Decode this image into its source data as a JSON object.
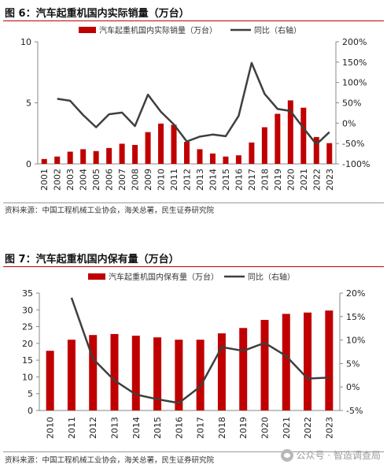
{
  "figures": [
    {
      "title": "图 6：汽车起重机国内实际销量（万台）",
      "source": "资料来源：中国工程机械工业协会，海关总署，民生证券研究院"
    },
    {
      "title": "图 7：汽车起重机国内保有量（万台）",
      "source": "资料来源：中国工程机械工业协会，海关总署，民生证券研究院"
    }
  ],
  "watermark": {
    "label": "公众号 · 智造调查局"
  },
  "colors": {
    "bar": "#c00000",
    "line": "#3f3f3f",
    "rule": "#c00000"
  },
  "chart_data": [
    {
      "type": "bar",
      "secondary_type": "line",
      "categories": [
        "2001",
        "2002",
        "2003",
        "2004",
        "2005",
        "2006",
        "2007",
        "2008",
        "2009",
        "2010",
        "2011",
        "2012",
        "2013",
        "2014",
        "2015",
        "2016",
        "2017",
        "2018",
        "2019",
        "2020",
        "2021",
        "2022",
        "2023"
      ],
      "series": [
        {
          "name": "汽车起重机国内实际销量（万台）",
          "axis": "left",
          "values": [
            0.4,
            0.6,
            1.0,
            1.2,
            1.05,
            1.3,
            1.65,
            1.55,
            2.6,
            3.3,
            3.2,
            1.8,
            1.2,
            0.85,
            0.6,
            0.7,
            1.75,
            3.0,
            4.1,
            5.2,
            4.6,
            2.2,
            1.7
          ]
        },
        {
          "name": "同比（右轴）",
          "axis": "right",
          "values": [
            null,
            0.6,
            0.55,
            0.2,
            -0.1,
            0.22,
            0.26,
            -0.07,
            0.7,
            0.28,
            -0.03,
            -0.45,
            -0.33,
            -0.28,
            -0.32,
            0.18,
            1.48,
            0.72,
            0.35,
            0.3,
            -0.12,
            -0.52,
            -0.22
          ]
        }
      ],
      "ylim": [
        0,
        10
      ],
      "yticks": [
        "0",
        "5",
        "10"
      ],
      "ytick_values": [
        0,
        5,
        10
      ],
      "y2lim": [
        -1,
        2
      ],
      "y2ticks": [
        "-100%",
        "-50%",
        "0%",
        "50%",
        "100%",
        "150%",
        "200%"
      ],
      "y2tick_values": [
        -1,
        -0.5,
        0,
        0.5,
        1,
        1.5,
        2
      ],
      "legend_position": "top",
      "grid": false
    },
    {
      "type": "bar",
      "secondary_type": "line",
      "categories": [
        "2010",
        "2011",
        "2012",
        "2013",
        "2014",
        "2015",
        "2016",
        "2017",
        "2018",
        "2019",
        "2020",
        "2021",
        "2022",
        "2023"
      ],
      "series": [
        {
          "name": "汽车起重机国内保有量（万台）",
          "axis": "left",
          "values": [
            17.8,
            21.1,
            22.5,
            22.8,
            22.3,
            21.8,
            21.1,
            21.1,
            23.0,
            24.6,
            27.0,
            28.8,
            29.2,
            29.8
          ]
        },
        {
          "name": "同比（右轴）",
          "axis": "right",
          "values": [
            null,
            0.19,
            0.06,
            0.014,
            -0.016,
            -0.026,
            -0.034,
            0.001,
            0.085,
            0.077,
            0.094,
            0.066,
            0.018,
            0.02
          ]
        }
      ],
      "ylim": [
        0,
        35
      ],
      "yticks": [
        "0",
        "5",
        "10",
        "15",
        "20",
        "25",
        "30",
        "35"
      ],
      "ytick_values": [
        0,
        5,
        10,
        15,
        20,
        25,
        30,
        35
      ],
      "y2lim": [
        -0.05,
        0.2
      ],
      "y2ticks": [
        "-5%",
        "0%",
        "5%",
        "10%",
        "15%",
        "20%"
      ],
      "y2tick_values": [
        -0.05,
        0,
        0.05,
        0.1,
        0.15,
        0.2
      ],
      "legend_position": "top",
      "grid": false
    }
  ]
}
